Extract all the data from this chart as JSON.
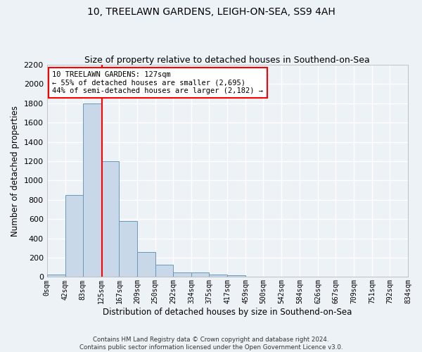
{
  "title1": "10, TREELAWN GARDENS, LEIGH-ON-SEA, SS9 4AH",
  "title2": "Size of property relative to detached houses in Southend-on-Sea",
  "xlabel": "Distribution of detached houses by size in Southend-on-Sea",
  "ylabel": "Number of detached properties",
  "bin_edges": [
    0,
    42,
    83,
    125,
    167,
    209,
    250,
    292,
    334,
    375,
    417,
    459,
    500,
    542,
    584,
    626,
    667,
    709,
    751,
    792,
    834
  ],
  "bar_heights": [
    25,
    850,
    1800,
    1200,
    580,
    255,
    130,
    45,
    45,
    25,
    15,
    0,
    0,
    0,
    0,
    0,
    0,
    0,
    0,
    0
  ],
  "bar_color": "#c8d8e8",
  "bar_edge_color": "#6699bb",
  "red_line_x": 127,
  "ylim": [
    0,
    2200
  ],
  "yticks": [
    0,
    200,
    400,
    600,
    800,
    1000,
    1200,
    1400,
    1600,
    1800,
    2000,
    2200
  ],
  "annotation_text": "10 TREELAWN GARDENS: 127sqm\n← 55% of detached houses are smaller (2,695)\n44% of semi-detached houses are larger (2,182) →",
  "footnote1": "Contains HM Land Registry data © Crown copyright and database right 2024.",
  "footnote2": "Contains public sector information licensed under the Open Government Licence v3.0.",
  "background_color": "#edf2f7",
  "grid_color": "#ffffff",
  "title1_fontsize": 10,
  "title2_fontsize": 9,
  "tick_labels": [
    "0sqm",
    "42sqm",
    "83sqm",
    "125sqm",
    "167sqm",
    "209sqm",
    "250sqm",
    "292sqm",
    "334sqm",
    "375sqm",
    "417sqm",
    "459sqm",
    "500sqm",
    "542sqm",
    "584sqm",
    "626sqm",
    "667sqm",
    "709sqm",
    "751sqm",
    "792sqm",
    "834sqm"
  ]
}
